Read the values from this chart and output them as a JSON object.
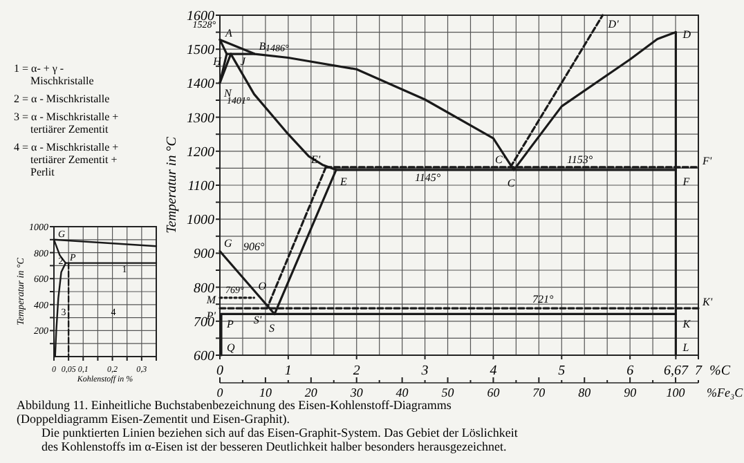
{
  "chart_data": [
    {
      "type": "line",
      "xlabel": "%C",
      "ylabel": "Temperatur in °C",
      "x2label": "%Fe₃C",
      "xlim": [
        0,
        7
      ],
      "xticks": [
        0,
        1,
        2,
        3,
        4,
        5,
        6,
        {
          "value": 6.67,
          "label": "6,67"
        },
        7
      ],
      "ylim": [
        600,
        1600
      ],
      "yticks": [
        600,
        {
          "value": 650,
          "label": null
        },
        700,
        {
          "value": 750,
          "label": null
        },
        800,
        {
          "value": 850,
          "label": null
        },
        900,
        {
          "value": 950,
          "label": null
        },
        1000,
        {
          "value": 1050,
          "label": null
        },
        1100,
        {
          "value": 1150,
          "label": null
        },
        1200,
        {
          "value": 1250,
          "label": null
        },
        1300,
        {
          "value": 1350,
          "label": null
        },
        1400,
        {
          "value": 1450,
          "label": null
        },
        1500,
        {
          "value": 1550,
          "label": null
        },
        1600
      ],
      "x2lim": [
        0,
        105
      ],
      "x2ticks": [
        0,
        {
          "value": 5,
          "label": null
        },
        10,
        {
          "value": 15,
          "label": null
        },
        20,
        {
          "value": 25,
          "label": null
        },
        30,
        {
          "value": 35,
          "label": null
        },
        40,
        {
          "value": 45,
          "label": null
        },
        50,
        {
          "value": 55,
          "label": null
        },
        60,
        {
          "value": 65,
          "label": null
        },
        70,
        {
          "value": 75,
          "label": null
        },
        80,
        {
          "value": 85,
          "label": null
        },
        90,
        {
          "value": 95,
          "label": null
        },
        100,
        {
          "value": 105,
          "label": null
        }
      ],
      "grid": true,
      "series": [
        {
          "color": "#1a1a1a",
          "line_style": "solid",
          "x": [
            0,
            0.51,
            1,
            2,
            3,
            4,
            4.3,
            5,
            6,
            6.4,
            6.67
          ],
          "values": [
            1528,
            1486,
            1475,
            1441,
            1352,
            1238,
            1145,
            1332,
            1470,
            1530,
            1550
          ]
        },
        {
          "color": "#1a1a1a",
          "line_style": "solid",
          "x": [
            0,
            0.1
          ],
          "values": [
            1528,
            1486
          ]
        },
        {
          "color": "#1a1a1a",
          "line_style": "solid",
          "x": [
            0.1,
            0.51
          ],
          "values": [
            1486,
            1486
          ]
        },
        {
          "color": "#1a1a1a",
          "line_style": "solid",
          "x": [
            0.1,
            0
          ],
          "values": [
            1486,
            1401
          ]
        },
        {
          "color": "#1a1a1a",
          "line_style": "solid",
          "x": [
            0.16,
            0
          ],
          "values": [
            1486,
            1401
          ]
        },
        {
          "color": "#1a1a1a",
          "line_style": "solid",
          "x": [
            0.16,
            0.5,
            1,
            1.3,
            1.5,
            1.7,
            6.67
          ],
          "values": [
            1486,
            1368,
            1250,
            1185,
            1160,
            1145,
            1145
          ]
        },
        {
          "color": "#1a1a1a",
          "line_style": "solid",
          "x": [
            6.67,
            6.67
          ],
          "values": [
            600,
            1550
          ]
        },
        {
          "color": "#1a1a1a",
          "line_style": "solid",
          "x": [
            0,
            0.8
          ],
          "values": [
            906,
            721
          ]
        },
        {
          "color": "#1a1a1a",
          "line_style": "solid",
          "x": [
            1.7,
            0.8
          ],
          "values": [
            1145,
            721
          ]
        },
        {
          "color": "#1a1a1a",
          "line_style": "solid",
          "x": [
            0.02,
            6.67
          ],
          "values": [
            721,
            721
          ]
        },
        {
          "color": "#1a1a1a",
          "line_style": "solid",
          "x": [
            0.02,
            0.02
          ],
          "values": [
            721,
            600
          ]
        },
        {
          "color": "#1a1a1a",
          "line_style": "dashed",
          "x": [
            1.55,
            7
          ],
          "values": [
            1153,
            1153
          ]
        },
        {
          "color": "#1a1a1a",
          "line_style": "dashed",
          "x": [
            4.25,
            5.6
          ],
          "values": [
            1153,
            1600
          ]
        },
        {
          "color": "#1a1a1a",
          "line_style": "dashed",
          "x": [
            1.55,
            0.69
          ],
          "values": [
            1153,
            738
          ]
        },
        {
          "color": "#1a1a1a",
          "line_style": "dashed",
          "x": [
            0,
            7
          ],
          "values": [
            738,
            738
          ]
        },
        {
          "color": "#1a1a1a",
          "line_style": "dotted",
          "x": [
            0,
            0.5
          ],
          "values": [
            769,
            769
          ]
        }
      ],
      "annotations": [
        {
          "text": "A",
          "x": 0,
          "y": 1528
        },
        {
          "text": "B",
          "x": 0.51,
          "y": 1486
        },
        {
          "text": "H",
          "x": 0.1,
          "y": 1486
        },
        {
          "text": "J",
          "x": 0.16,
          "y": 1486
        },
        {
          "text": "N",
          "x": 0,
          "y": 1401
        },
        {
          "text": "C'",
          "x": 4.25,
          "y": 1153
        },
        {
          "text": "C",
          "x": 4.3,
          "y": 1145
        },
        {
          "text": "D",
          "x": 6.67,
          "y": 1550
        },
        {
          "text": "D'",
          "x": 5.6,
          "y": 1600
        },
        {
          "text": "E'",
          "x": 1.55,
          "y": 1153
        },
        {
          "text": "E",
          "x": 1.7,
          "y": 1145
        },
        {
          "text": "F",
          "x": 6.67,
          "y": 1145
        },
        {
          "text": "F'",
          "x": 7,
          "y": 1153
        },
        {
          "text": "G",
          "x": 0,
          "y": 906
        },
        {
          "text": "O",
          "x": 0.5,
          "y": 769
        },
        {
          "text": "M",
          "x": 0,
          "y": 769
        },
        {
          "text": "S'",
          "x": 0.69,
          "y": 738
        },
        {
          "text": "S",
          "x": 0.8,
          "y": 721
        },
        {
          "text": "P'",
          "x": 0,
          "y": 738
        },
        {
          "text": "P",
          "x": 0.02,
          "y": 721
        },
        {
          "text": "Q",
          "x": 0.02,
          "y": 600
        },
        {
          "text": "K",
          "x": 6.67,
          "y": 721
        },
        {
          "text": "K'",
          "x": 7,
          "y": 738
        },
        {
          "text": "L",
          "x": 6.67,
          "y": 600
        },
        "1528°",
        "1486°",
        "1401°",
        "1145°",
        "1153°",
        "906°",
        "769°",
        "721°",
        "Abbildung 11. Einheitliche Buchstabenbezeichnung des Eisen-Kohlenstoff-Diagramms",
        "(Doppeldiagramm Eisen-Zementit und Eisen-Graphit).",
        "Die punktierten Linien beziehen sich auf das Eisen-Graphit-System. Das Gebiet der Löslichkeit",
        "des Kohlenstoffs im α-Eisen ist der besseren Deutlichkeit halber besonders herausgezeichnet."
      ]
    },
    {
      "type": "line",
      "xlabel": "Kohlenstoff in %",
      "ylabel": "Temperatur in °C",
      "xlim": [
        0,
        0.35
      ],
      "xticks": [
        0,
        {
          "value": 0.05,
          "label": "0,05"
        },
        {
          "value": 0.1,
          "label": "0,1"
        },
        {
          "value": 0.15,
          "label": null
        },
        {
          "value": 0.2,
          "label": "0,2"
        },
        {
          "value": 0.25,
          "label": null
        },
        {
          "value": 0.3,
          "label": "0,3"
        },
        {
          "value": 0.35,
          "label": null
        }
      ],
      "ylim": [
        0,
        1000
      ],
      "yticks": [
        {
          "value": 100,
          "label": null
        },
        200,
        {
          "value": 300,
          "label": null
        },
        400,
        {
          "value": 500,
          "label": null
        },
        600,
        {
          "value": 700,
          "label": null
        },
        800,
        {
          "value": 900,
          "label": null
        },
        1000
      ],
      "grid": true,
      "series": [
        {
          "color": "#1a1a1a",
          "line_style": "solid",
          "x": [
            0,
            0.35
          ],
          "values": [
            900,
            850
          ]
        },
        {
          "color": "#1a1a1a",
          "line_style": "solid",
          "x": [
            0,
            0.02,
            0.04
          ],
          "values": [
            900,
            780,
            720
          ]
        },
        {
          "color": "#1a1a1a",
          "line_style": "solid",
          "x": [
            0.04,
            0.35
          ],
          "values": [
            720,
            720
          ]
        },
        {
          "color": "#1a1a1a",
          "line_style": "solid",
          "x": [
            0.04,
            0.025,
            0.015,
            0.008,
            0.004
          ],
          "values": [
            720,
            650,
            450,
            200,
            0
          ]
        },
        {
          "color": "#1a1a1a",
          "line_style": "dashed",
          "x": [
            0.05,
            0.05
          ],
          "values": [
            720,
            0
          ]
        }
      ],
      "annotations": [
        {
          "text": "G",
          "x": 0,
          "y": 900
        },
        {
          "text": "P",
          "x": 0.04,
          "y": 720
        },
        "1",
        "2",
        "3",
        "4",
        "1 = α- + γ - Mischkristalle",
        "2 = α - Mischkristalle",
        "3 = α - Mischkristalle + tertiärer Zementit",
        "4 = α - Mischkristalle + tertiärer Zementit + Perlit"
      ]
    }
  ]
}
